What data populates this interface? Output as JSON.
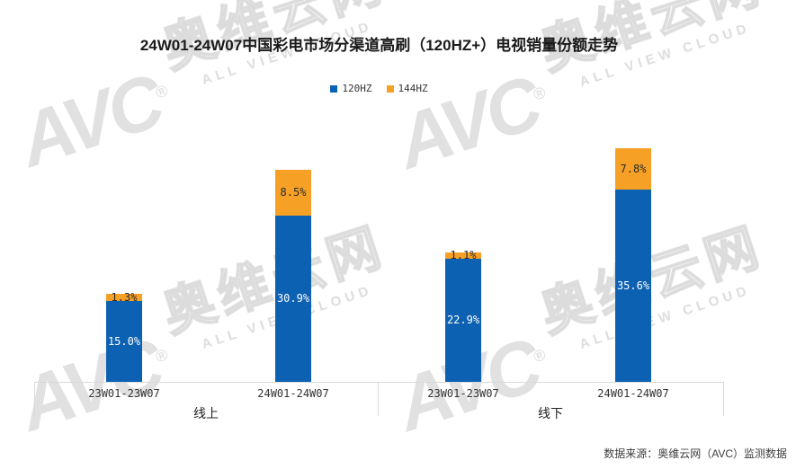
{
  "title": "24W01-24W07中国彩电市场分渠道高刷（120HZ+）电视销量份额走势",
  "legend": [
    {
      "label": "120HZ",
      "color": "#0d61b2"
    },
    {
      "label": "144HZ",
      "color": "#f6a126"
    }
  ],
  "source_note": "数据来源：奥维云网（AVC）监测数据",
  "watermark": {
    "logo": "AVC",
    "reg": "®",
    "cn": "奥维云网",
    "en": "ALL VIEW CLOUD"
  },
  "chart_data": {
    "type": "bar",
    "stacked": true,
    "title": "24W01-24W07中国彩电市场分渠道高刷（120HZ+）电视销量份额走势",
    "unit": "percent",
    "ylim": [
      0,
      70
    ],
    "grid": false,
    "legend_position": "top-center",
    "groups": [
      {
        "label": "线上",
        "categories": [
          "23W01-23W07",
          "24W01-24W07"
        ]
      },
      {
        "label": "线下",
        "categories": [
          "23W01-23W07",
          "24W01-24W07"
        ]
      }
    ],
    "categories": [
      "23W01-23W07",
      "24W01-24W07",
      "23W01-23W07",
      "24W01-24W07"
    ],
    "series": [
      {
        "name": "120HZ",
        "color": "#0d61b2",
        "values": [
          15.0,
          30.9,
          22.9,
          35.6
        ],
        "labels": [
          "15.0%",
          "30.9%",
          "22.9%",
          "35.6%"
        ]
      },
      {
        "name": "144HZ",
        "color": "#f6a126",
        "values": [
          1.3,
          8.5,
          1.1,
          7.8
        ],
        "labels": [
          "1.3%",
          "8.5%",
          "1.1%",
          "7.8%"
        ]
      }
    ]
  }
}
